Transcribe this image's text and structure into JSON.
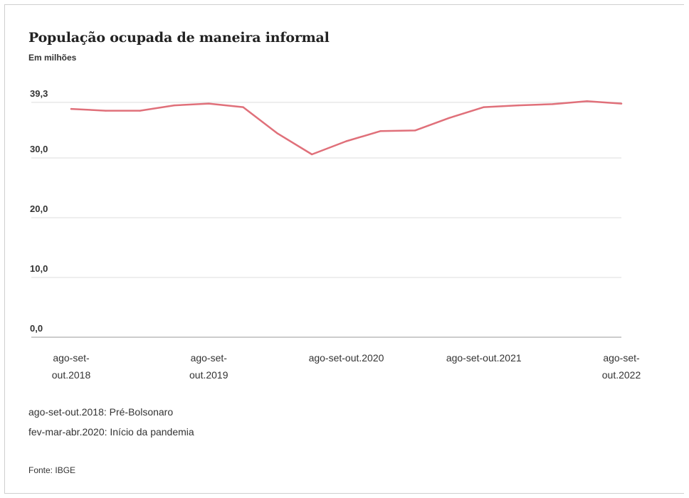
{
  "chart_data": {
    "type": "line",
    "title": "População ocupada de maneira informal",
    "subtitle": "Em milhões",
    "y_ticks": [
      {
        "value": 39.3,
        "label": "39,3"
      },
      {
        "value": 30.0,
        "label": "30,0"
      },
      {
        "value": 20.0,
        "label": "20,0"
      },
      {
        "value": 10.0,
        "label": "10,0"
      },
      {
        "value": 0.0,
        "label": "0,0"
      }
    ],
    "ylim": [
      0,
      40
    ],
    "x_tick_labels": [
      {
        "index": 0,
        "lines": [
          "ago-set-",
          "out.2018"
        ]
      },
      {
        "index": 4,
        "lines": [
          "ago-set-",
          "out.2019"
        ]
      },
      {
        "index": 8,
        "lines": [
          "ago-set-out.2020"
        ]
      },
      {
        "index": 12,
        "lines": [
          "ago-set-out.2021"
        ]
      },
      {
        "index": 16,
        "lines": [
          "ago-set-",
          "out.2022"
        ]
      }
    ],
    "series": [
      {
        "color": "#e0707a",
        "values": [
          38.2,
          37.9,
          37.9,
          38.8,
          39.1,
          38.5,
          34.1,
          30.6,
          32.8,
          34.5,
          34.6,
          36.7,
          38.5,
          38.8,
          39.0,
          39.5,
          39.1
        ]
      }
    ],
    "grid": true,
    "notes": [
      "ago-set-out.2018: Pré-Bolsonaro",
      "fev-mar-abr.2020: Início da pandemia"
    ],
    "source": "Fonte: IBGE"
  }
}
